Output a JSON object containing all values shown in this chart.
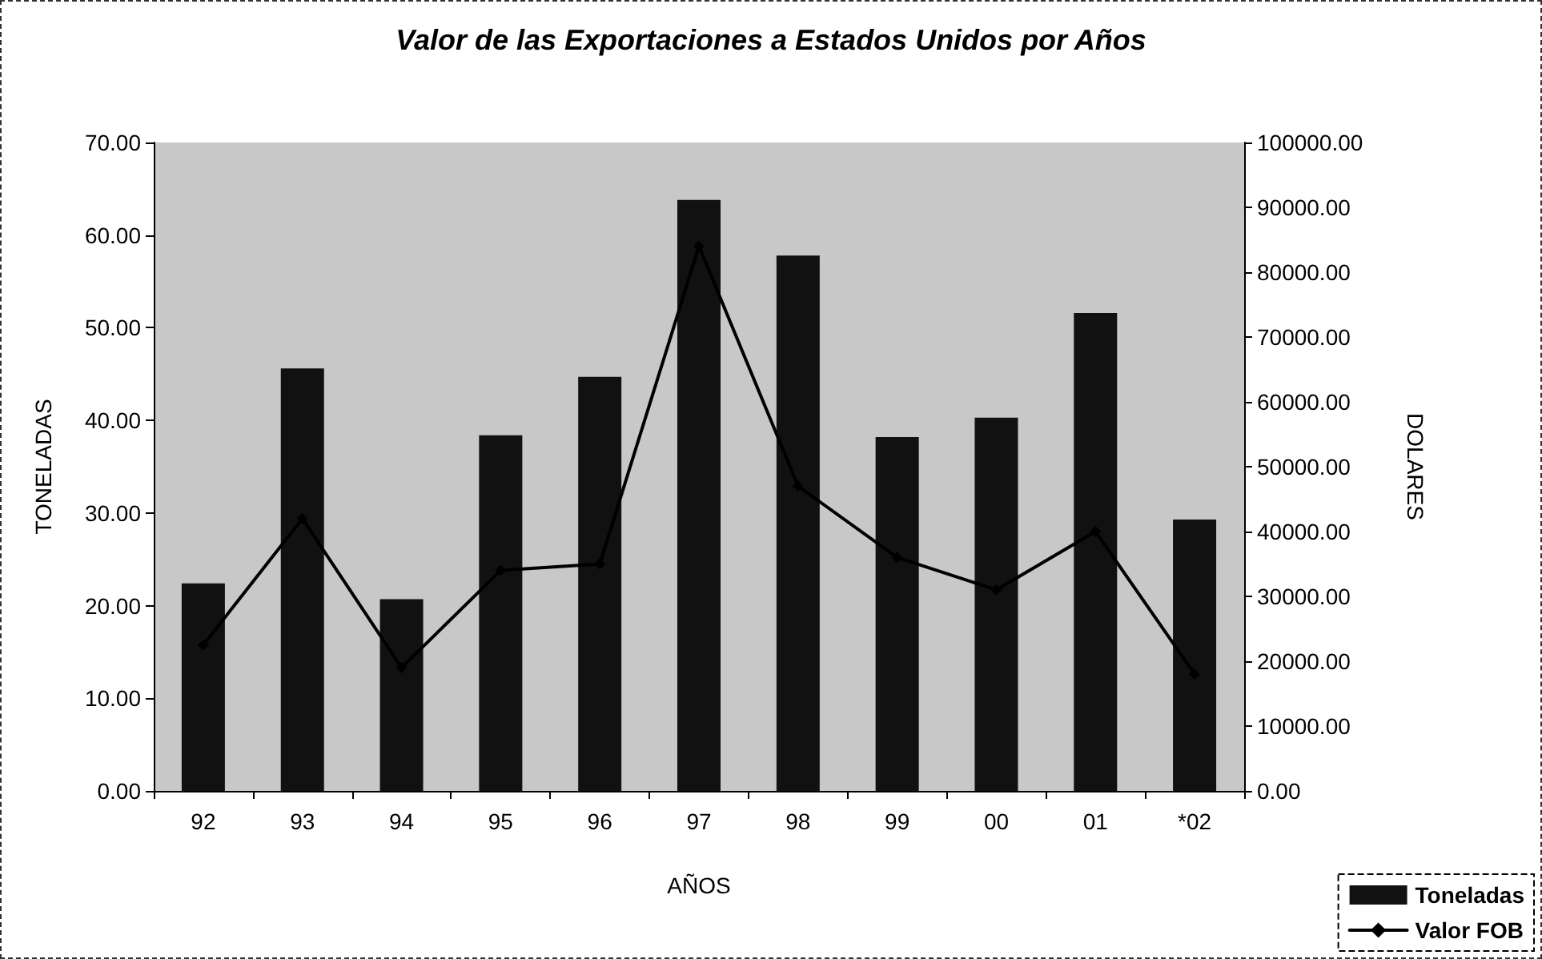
{
  "chart_data": {
    "type": "bar",
    "title": "Valor de las Exportaciones a Estados Unidos por Años",
    "xlabel": "AÑOS",
    "ylabel": "TONELADAS",
    "y2label": "DOLARES",
    "categories": [
      "92",
      "93",
      "94",
      "95",
      "96",
      "97",
      "98",
      "99",
      "00",
      "01",
      "*02"
    ],
    "series": [
      {
        "name": "Toneladas",
        "color": "#111111",
        "values": [
          22.4,
          45.6,
          20.7,
          38.4,
          44.7,
          63.8,
          57.8,
          38.2,
          40.3,
          51.6,
          29.3
        ]
      },
      {
        "name": "Valor FOB",
        "type": "line",
        "axis": "y2",
        "color": "#000000",
        "marker": "diamond",
        "line_style": "solid",
        "values": [
          22500,
          42000,
          19000,
          34000,
          35000,
          84000,
          47000,
          36000,
          31000,
          40000,
          18000
        ]
      }
    ],
    "ylim": [
      0,
      70
    ],
    "yticks": [
      {
        "value": 0,
        "label": "0.00"
      },
      {
        "value": 10,
        "label": "10.00"
      },
      {
        "value": 20,
        "label": "20.00"
      },
      {
        "value": 30,
        "label": "30.00"
      },
      {
        "value": 40,
        "label": "40.00"
      },
      {
        "value": 50,
        "label": "50.00"
      },
      {
        "value": 60,
        "label": "60.00"
      },
      {
        "value": 70,
        "label": "70.00"
      }
    ],
    "y2lim": [
      0,
      100000
    ],
    "y2ticks": [
      {
        "value": 0,
        "label": "0.00"
      },
      {
        "value": 10000,
        "label": "10000.00"
      },
      {
        "value": 20000,
        "label": "20000.00"
      },
      {
        "value": 30000,
        "label": "30000.00"
      },
      {
        "value": 40000,
        "label": "40000.00"
      },
      {
        "value": 50000,
        "label": "50000.00"
      },
      {
        "value": 60000,
        "label": "60000.00"
      },
      {
        "value": 70000,
        "label": "70000.00"
      },
      {
        "value": 80000,
        "label": "80000.00"
      },
      {
        "value": 90000,
        "label": "90000.00"
      },
      {
        "value": 100000,
        "label": "100000.00"
      }
    ],
    "grid": false,
    "legend": "bottom right"
  }
}
